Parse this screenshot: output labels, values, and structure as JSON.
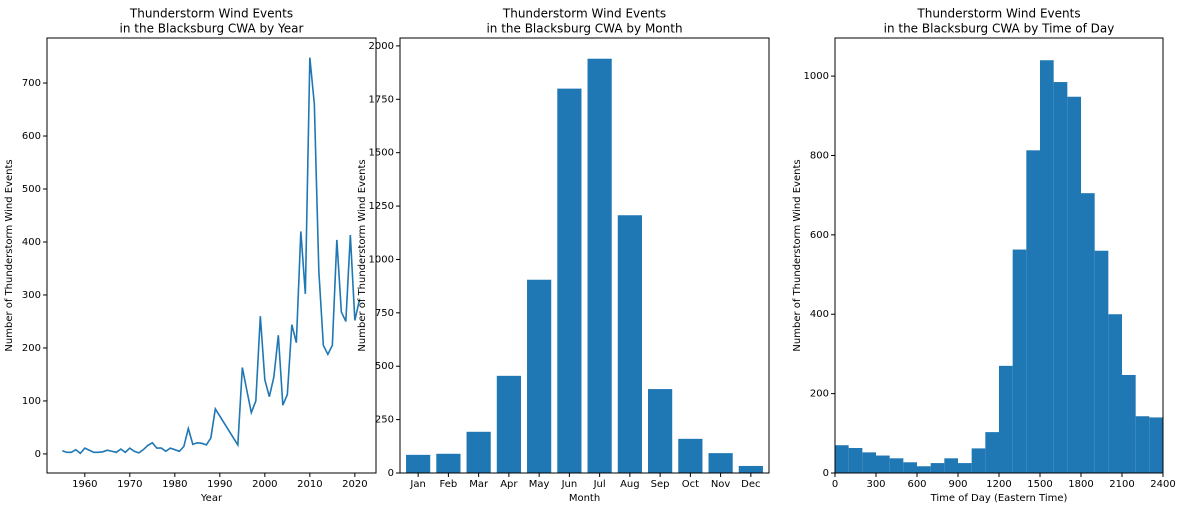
{
  "chart_data": [
    {
      "type": "line",
      "title": [
        "Thunderstorm Wind Events",
        "in the Blacksburg CWA by Year"
      ],
      "x_label": "Year",
      "y_label": "Number of Thunderstorm Wind Events",
      "x": [
        1955,
        1956,
        1957,
        1958,
        1959,
        1960,
        1961,
        1962,
        1963,
        1964,
        1965,
        1966,
        1967,
        1968,
        1969,
        1970,
        1971,
        1972,
        1973,
        1974,
        1975,
        1976,
        1977,
        1978,
        1979,
        1980,
        1981,
        1982,
        1983,
        1984,
        1985,
        1986,
        1987,
        1988,
        1989,
        1994,
        1995,
        1996,
        1997,
        1998,
        1999,
        2000,
        2001,
        2002,
        2003,
        2004,
        2005,
        2006,
        2007,
        2008,
        2009,
        2010,
        2011,
        2012,
        2013,
        2014,
        2015,
        2016,
        2017,
        2018,
        2019,
        2020,
        2021
      ],
      "values": [
        6,
        3,
        3,
        8,
        1,
        11,
        7,
        3,
        3,
        4,
        7,
        5,
        3,
        9,
        3,
        11,
        5,
        2,
        8,
        16,
        21,
        11,
        11,
        5,
        11,
        8,
        5,
        14,
        48,
        18,
        21,
        20,
        17,
        30,
        85,
        17,
        163,
        120,
        78,
        100,
        260,
        140,
        108,
        145,
        224,
        92,
        112,
        244,
        210,
        420,
        302,
        748,
        660,
        345,
        205,
        188,
        205,
        404,
        268,
        250,
        413,
        252,
        290
      ],
      "color": "#1f77b4",
      "xlim": [
        1951.6,
        2024.7
      ],
      "xticks": [
        1960,
        1970,
        1980,
        1990,
        2000,
        2010,
        2020
      ],
      "ylim": [
        -36,
        785
      ],
      "yticks": [
        0,
        100,
        200,
        300,
        400,
        500,
        600,
        700
      ]
    },
    {
      "type": "bar",
      "title": [
        "Thunderstorm Wind Events",
        "in the Blacksburg CWA by Month"
      ],
      "x_label": "Month",
      "y_label": "Number of Thunderstorm Wind Events",
      "categories": [
        "Jan",
        "Feb",
        "Mar",
        "Apr",
        "May",
        "Jun",
        "Jul",
        "Aug",
        "Sep",
        "Oct",
        "Nov",
        "Dec"
      ],
      "values": [
        85,
        90,
        193,
        455,
        905,
        1800,
        1940,
        1207,
        393,
        160,
        93,
        33
      ],
      "color": "#1f77b4",
      "ylim": [
        0,
        2037
      ],
      "yticks": [
        0,
        250,
        500,
        750,
        1000,
        1250,
        1500,
        1750,
        2000
      ]
    },
    {
      "type": "histogram",
      "title": [
        "Thunderstorm Wind Events",
        "in the Blacksburg CWA by Time of Day"
      ],
      "x_label": "Time of Day (Eastern Time)",
      "y_label": "Number of Thunderstorm Wind Events",
      "bins": [
        0,
        100,
        200,
        300,
        400,
        500,
        600,
        700,
        800,
        900,
        1000,
        1100,
        1200,
        1300,
        1400,
        1500,
        1600,
        1700,
        1800,
        1900,
        2000,
        2100,
        2200,
        2300,
        2400
      ],
      "values": [
        70,
        63,
        52,
        44,
        37,
        27,
        17,
        25,
        37,
        25,
        62,
        103,
        270,
        563,
        813,
        1040,
        985,
        948,
        705,
        560,
        400,
        247,
        143,
        140
      ],
      "color": "#1f77b4",
      "xlim": [
        0,
        2400
      ],
      "xticks": [
        0,
        300,
        600,
        900,
        1200,
        1500,
        1800,
        2100,
        2400
      ],
      "ylim": [
        0,
        1096
      ],
      "yticks": [
        0,
        200,
        400,
        600,
        800,
        1000
      ]
    }
  ]
}
